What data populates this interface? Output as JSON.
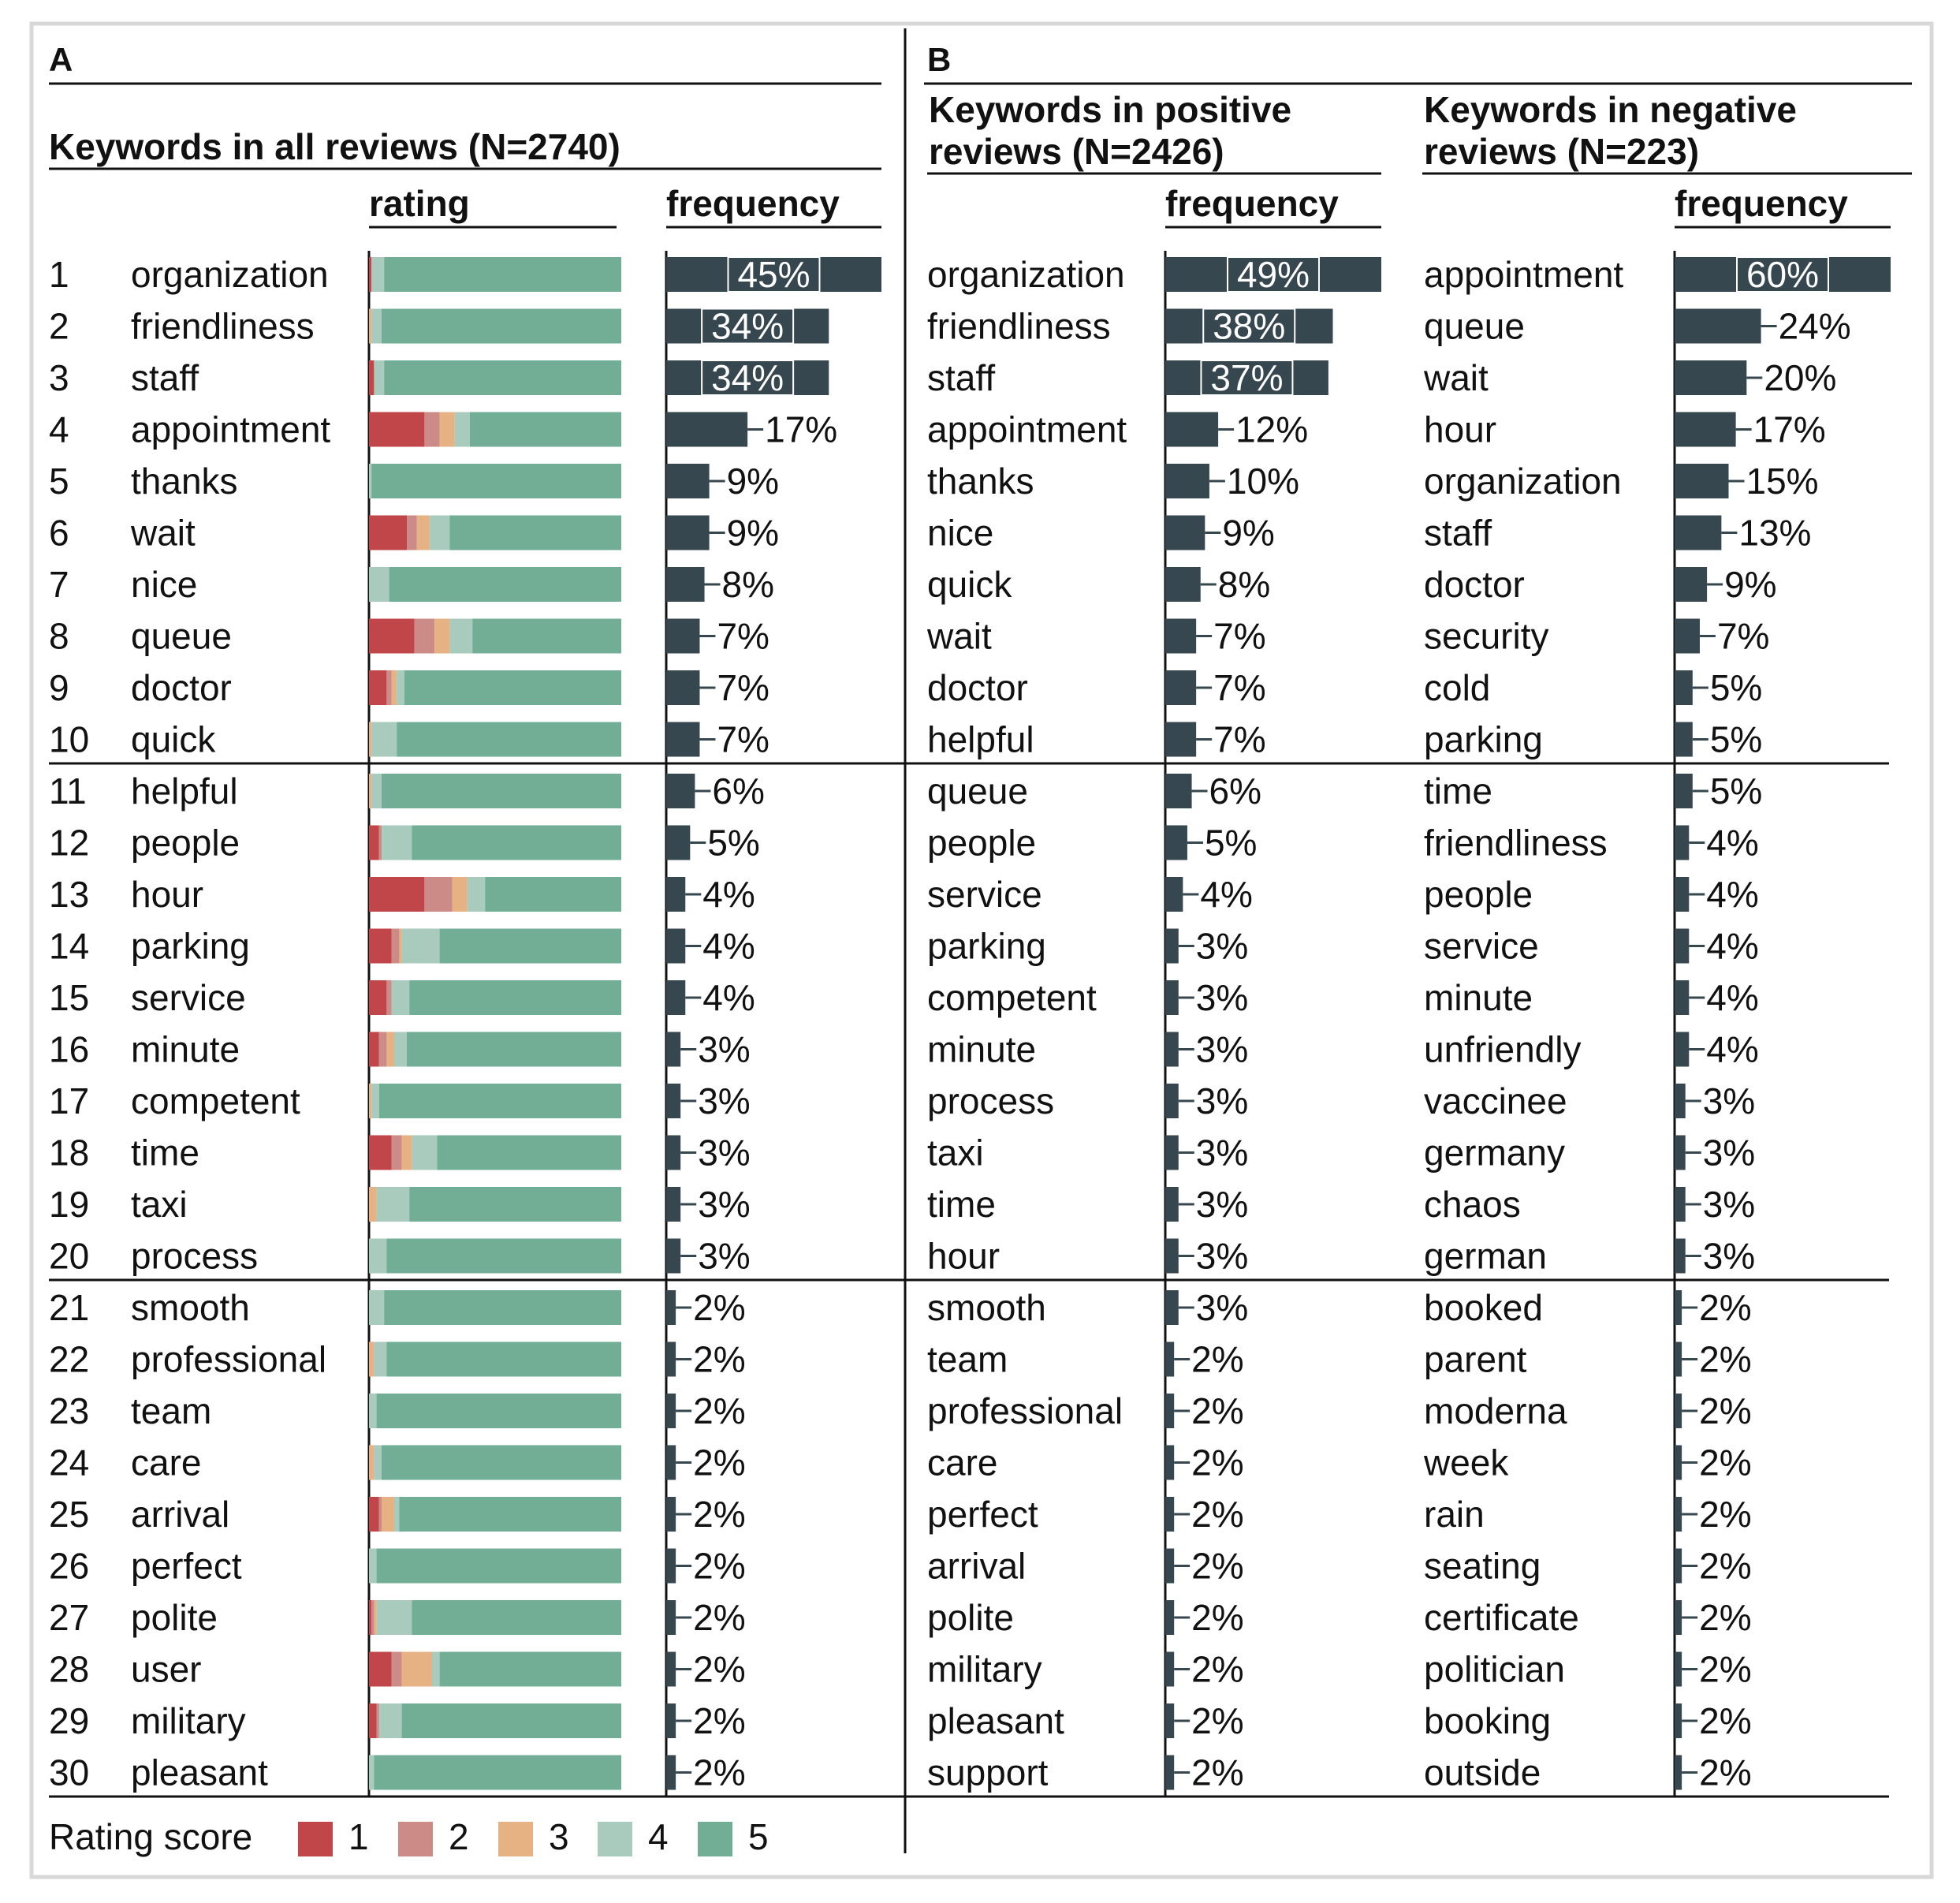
{
  "colors": {
    "frame": "#d8d8d8",
    "ink": "#111111",
    "bar_dark": "#37474f",
    "label_white": "#ffffff",
    "rating": [
      "#c0464a",
      "#cd8b87",
      "#e6b183",
      "#a9cbbd",
      "#72ae95"
    ]
  },
  "panel_a": {
    "letter": "A",
    "title": "Keywords in all reviews (N=2740)",
    "rating_header": "rating",
    "frequency_header": "frequency"
  },
  "panel_b": {
    "letter": "B",
    "positive_title_line1": "Keywords in positive",
    "positive_title_line2": "reviews (N=2426)",
    "negative_title_line1": "Keywords in negative",
    "negative_title_line2": "reviews (N=223)",
    "frequency_header": "frequency"
  },
  "legend": {
    "title": "Rating score",
    "labels": [
      "1",
      "2",
      "3",
      "4",
      "5"
    ]
  },
  "chart_data": [
    {
      "type": "bar",
      "title": "Keywords in all reviews (N=2740)",
      "ylabel": "frequency",
      "unit": "%",
      "ranks": [
        1,
        2,
        3,
        4,
        5,
        6,
        7,
        8,
        9,
        10,
        11,
        12,
        13,
        14,
        15,
        16,
        17,
        18,
        19,
        20,
        21,
        22,
        23,
        24,
        25,
        26,
        27,
        28,
        29,
        30
      ],
      "categories": [
        "organization",
        "friendliness",
        "staff",
        "appointment",
        "thanks",
        "wait",
        "nice",
        "queue",
        "doctor",
        "quick",
        "helpful",
        "people",
        "hour",
        "parking",
        "service",
        "minute",
        "competent",
        "time",
        "taxi",
        "process",
        "smooth",
        "professional",
        "team",
        "care",
        "arrival",
        "perfect",
        "polite",
        "user",
        "military",
        "pleasant"
      ],
      "values": [
        45,
        34,
        34,
        17,
        9,
        9,
        8,
        7,
        7,
        7,
        6,
        5,
        4,
        4,
        4,
        3,
        3,
        3,
        3,
        3,
        2,
        2,
        2,
        2,
        2,
        2,
        2,
        2,
        2,
        2
      ],
      "rating_distribution": {
        "type": "stacked-bar",
        "xlabel": "rating",
        "legend_title": "Rating score",
        "series_names": [
          "1",
          "2",
          "3",
          "4",
          "5"
        ],
        "shares_percent": [
          [
            1,
            0,
            0,
            5,
            94
          ],
          [
            0,
            0,
            1,
            4,
            95
          ],
          [
            2,
            0,
            0,
            4,
            94
          ],
          [
            22,
            6,
            6,
            6,
            60
          ],
          [
            0,
            0,
            0,
            1,
            99
          ],
          [
            15,
            4,
            5,
            8,
            68
          ],
          [
            0,
            0,
            0,
            8,
            92
          ],
          [
            18,
            8,
            6,
            9,
            59
          ],
          [
            7,
            2,
            2,
            3,
            86
          ],
          [
            0,
            0,
            1,
            10,
            89
          ],
          [
            0,
            0,
            1,
            4,
            95
          ],
          [
            4,
            1,
            0,
            12,
            83
          ],
          [
            22,
            11,
            6,
            7,
            54
          ],
          [
            9,
            3,
            1,
            15,
            72
          ],
          [
            7,
            2,
            0,
            7,
            84
          ],
          [
            4,
            3,
            3,
            5,
            85
          ],
          [
            0,
            0,
            1,
            3,
            96
          ],
          [
            9,
            4,
            4,
            10,
            73
          ],
          [
            0,
            0,
            3,
            13,
            84
          ],
          [
            0,
            0,
            0,
            7,
            93
          ],
          [
            0,
            0,
            0,
            6,
            94
          ],
          [
            0,
            0,
            2,
            5,
            93
          ],
          [
            0,
            0,
            0,
            3,
            97
          ],
          [
            0,
            0,
            2,
            3,
            95
          ],
          [
            4,
            1,
            5,
            2,
            88
          ],
          [
            0,
            0,
            0,
            3,
            97
          ],
          [
            1,
            1,
            1,
            14,
            83
          ],
          [
            9,
            4,
            12,
            3,
            72
          ],
          [
            3,
            1,
            0,
            9,
            87
          ],
          [
            0,
            0,
            0,
            2,
            98
          ]
        ]
      }
    },
    {
      "type": "bar",
      "title": "Keywords in positive reviews (N=2426)",
      "ylabel": "frequency",
      "unit": "%",
      "categories": [
        "organization",
        "friendliness",
        "staff",
        "appointment",
        "thanks",
        "nice",
        "quick",
        "wait",
        "doctor",
        "helpful",
        "queue",
        "people",
        "service",
        "parking",
        "competent",
        "minute",
        "process",
        "taxi",
        "time",
        "hour",
        "smooth",
        "team",
        "professional",
        "care",
        "perfect",
        "arrival",
        "polite",
        "military",
        "pleasant",
        "support"
      ],
      "values": [
        49,
        38,
        37,
        12,
        10,
        9,
        8,
        7,
        7,
        7,
        6,
        5,
        4,
        3,
        3,
        3,
        3,
        3,
        3,
        3,
        3,
        2,
        2,
        2,
        2,
        2,
        2,
        2,
        2,
        2
      ]
    },
    {
      "type": "bar",
      "title": "Keywords in negative reviews (N=223)",
      "ylabel": "frequency",
      "unit": "%",
      "categories": [
        "appointment",
        "queue",
        "wait",
        "hour",
        "organization",
        "staff",
        "doctor",
        "security",
        "cold",
        "parking",
        "time",
        "friendliness",
        "people",
        "service",
        "minute",
        "unfriendly",
        "vaccinee",
        "germany",
        "chaos",
        "german",
        "booked",
        "parent",
        "moderna",
        "week",
        "rain",
        "seating",
        "certificate",
        "politician",
        "booking",
        "outside"
      ],
      "values": [
        60,
        24,
        20,
        17,
        15,
        13,
        9,
        7,
        5,
        5,
        5,
        4,
        4,
        4,
        4,
        4,
        3,
        3,
        3,
        3,
        2,
        2,
        2,
        2,
        2,
        2,
        2,
        2,
        2,
        2
      ]
    }
  ]
}
